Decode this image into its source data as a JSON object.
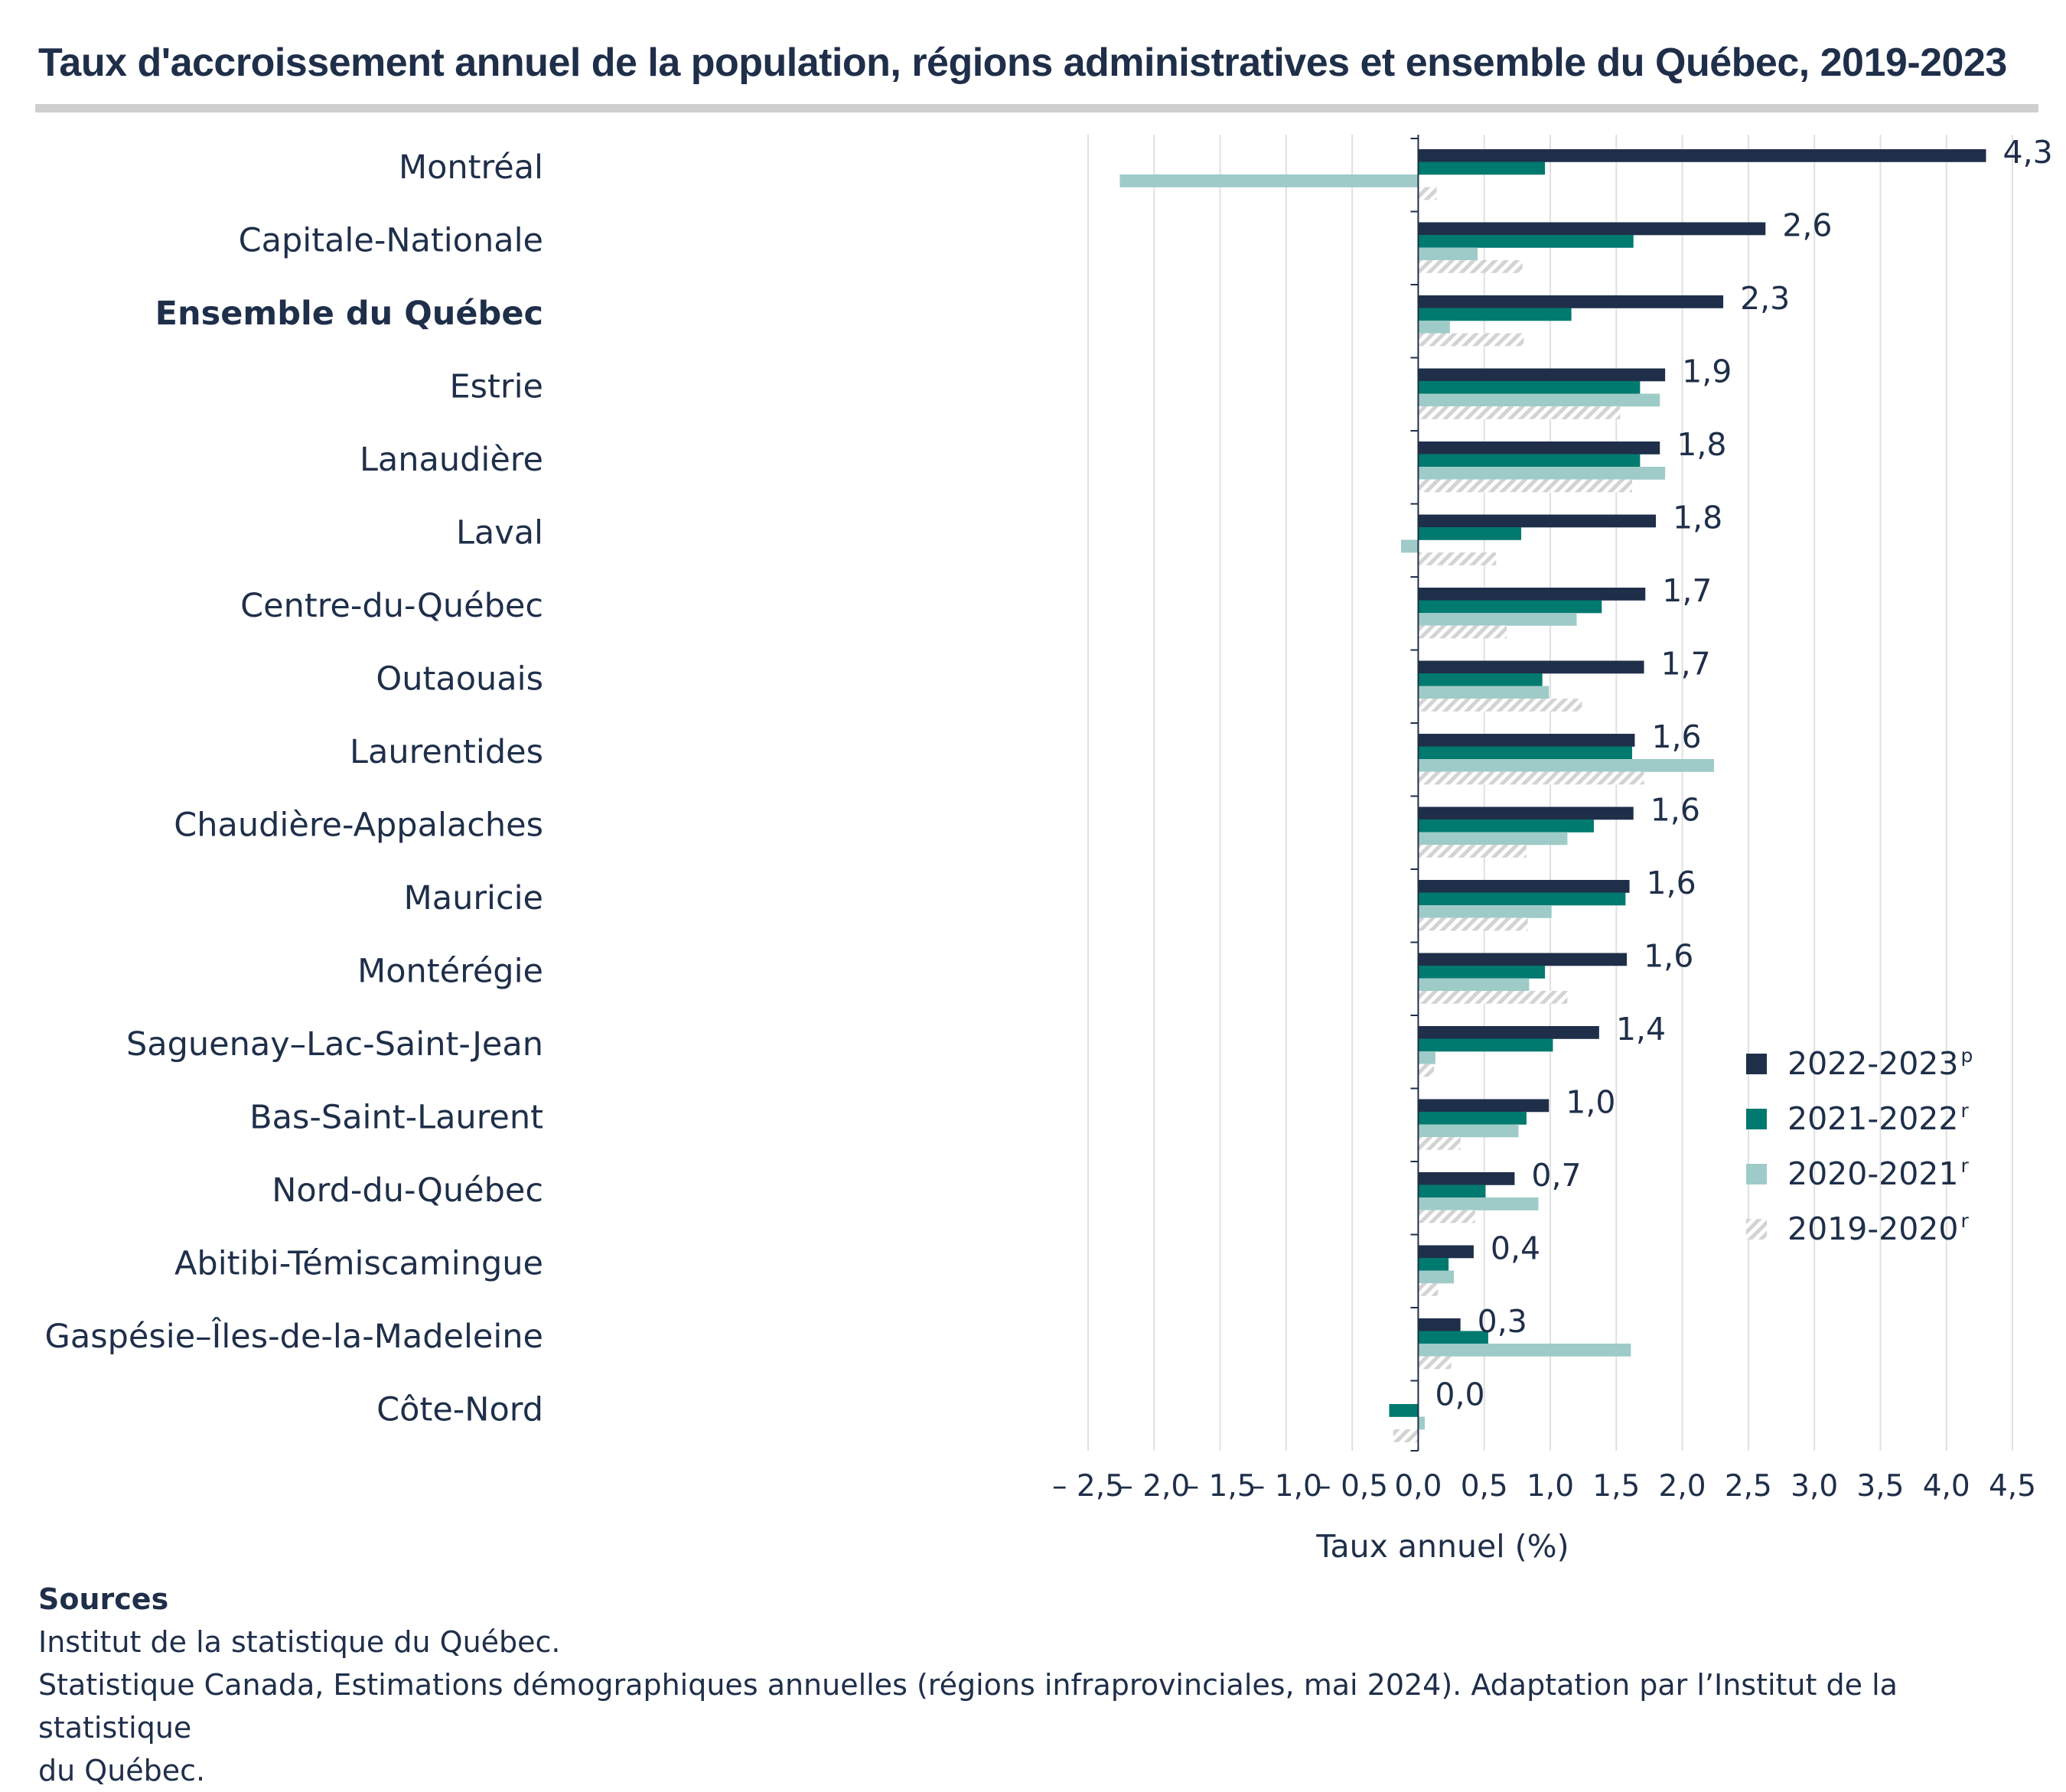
{
  "chart_data": {
    "type": "bar",
    "orientation": "horizontal",
    "title": "Taux d'accroissement annuel de la population, régions administratives et ensemble du Québec, 2019-2023",
    "xlabel": "Taux annuel (%)",
    "ylabel": "",
    "xlim": [
      -2.5,
      4.5
    ],
    "xticks": [
      -2.5,
      -2.0,
      -1.5,
      -1.0,
      -0.5,
      0.0,
      0.5,
      1.0,
      1.5,
      2.0,
      2.5,
      3.0,
      3.5,
      4.0,
      4.5
    ],
    "xtick_labels": [
      "– 2,5",
      "– 2,0",
      "– 1,5",
      "– 1,0",
      "– 0,5",
      "0,0",
      "0,5",
      "1,0",
      "1,5",
      "2,0",
      "2,5",
      "3,0",
      "3,5",
      "4,0",
      "4,5"
    ],
    "grid": "vertical",
    "legend_position": "right",
    "categories": [
      "Montréal",
      "Capitale-Nationale",
      "Ensemble du Québec",
      "Estrie",
      "Lanaudière",
      "Laval",
      "Centre-du-Québec",
      "Outaouais",
      "Laurentides",
      "Chaudière-Appalaches",
      "Mauricie",
      "Montérégie",
      "Saguenay–Lac-Saint-Jean",
      "Bas-Saint-Laurent",
      "Nord-du-Québec",
      "Abitibi-Témiscamingue",
      "Gaspésie–Îles-de-la-Madeleine",
      "Côte-Nord"
    ],
    "highlighted_category": "Ensemble du Québec",
    "series": [
      {
        "name": "2022-2023",
        "superscript": "p",
        "color": "#1f2f4a",
        "pattern": "solid",
        "values": [
          4.3,
          2.63,
          2.31,
          1.87,
          1.83,
          1.8,
          1.72,
          1.71,
          1.64,
          1.63,
          1.6,
          1.58,
          1.37,
          0.99,
          0.73,
          0.42,
          0.32,
          0.0
        ]
      },
      {
        "name": "2021-2022",
        "superscript": "r",
        "color": "#00796f",
        "pattern": "solid",
        "values": [
          0.96,
          1.63,
          1.16,
          1.68,
          1.68,
          0.78,
          1.39,
          0.94,
          1.62,
          1.33,
          1.57,
          0.96,
          1.02,
          0.82,
          0.51,
          0.23,
          0.53,
          -0.22
        ]
      },
      {
        "name": "2020-2021",
        "superscript": "r",
        "color": "#9ecbc7",
        "pattern": "solid",
        "values": [
          -2.26,
          0.45,
          0.24,
          1.83,
          1.87,
          -0.13,
          1.2,
          0.99,
          2.24,
          1.13,
          1.01,
          0.84,
          0.13,
          0.76,
          0.91,
          0.27,
          1.61,
          0.05
        ]
      },
      {
        "name": "2019-2020",
        "superscript": "r",
        "color": "#d6d6d6",
        "pattern": "hatched",
        "values": [
          0.14,
          0.79,
          0.8,
          1.53,
          1.62,
          0.59,
          0.67,
          1.24,
          1.71,
          0.82,
          0.83,
          1.13,
          0.12,
          0.32,
          0.43,
          0.15,
          0.25,
          -0.19
        ]
      }
    ],
    "data_labels": [
      "4,3",
      "2,6",
      "2,3",
      "1,9",
      "1,8",
      "1,8",
      "1,7",
      "1,7",
      "1,6",
      "1,6",
      "1,6",
      "1,6",
      "1,4",
      "1,0",
      "0,7",
      "0,4",
      "0,3",
      "0,0"
    ]
  },
  "sources": {
    "heading": "Sources",
    "lines": [
      "Institut de la statistique du Québec.",
      "Statistique Canada, Estimations démographiques annuelles (régions infraprovinciales, mai 2024). Adaptation par l’Institut de la statistique",
      "du Québec."
    ]
  }
}
